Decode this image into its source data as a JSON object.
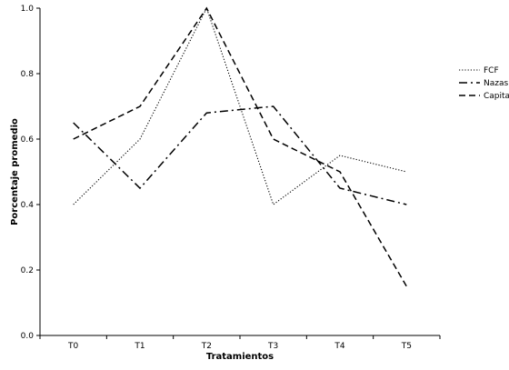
{
  "chart_data": {
    "type": "line",
    "categories": [
      "T0",
      "T1",
      "T2",
      "T3",
      "T4",
      "T5"
    ],
    "series": [
      {
        "name": "FCF",
        "values": [
          0.4,
          0.6,
          1.0,
          0.4,
          0.55,
          0.5
        ],
        "dash": "dotted",
        "color": "#000000"
      },
      {
        "name": "Nazas",
        "values": [
          0.65,
          0.45,
          0.68,
          0.7,
          0.45,
          0.4
        ],
        "dash": "dash-dot",
        "color": "#000000"
      },
      {
        "name": "Capital",
        "values": [
          0.6,
          0.7,
          1.0,
          0.6,
          0.5,
          0.15
        ],
        "dash": "dashed",
        "color": "#000000"
      }
    ],
    "xlabel": "Tratamientos",
    "ylabel": "Porcentaje promedio",
    "ylim": [
      0.0,
      1.0
    ],
    "yticks": [
      "0.0",
      "0.2",
      "0.4",
      "0.6",
      "0.8",
      "1.0"
    ],
    "grid": false,
    "legend_position": "right"
  }
}
